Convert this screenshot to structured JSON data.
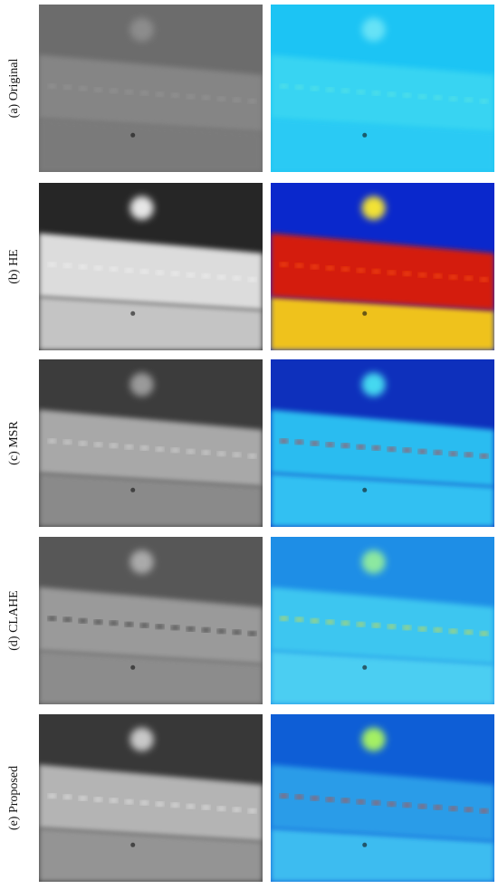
{
  "rows": [
    {
      "label": "(a) Original"
    },
    {
      "label": "(b) HE"
    },
    {
      "label": "(c) MSR"
    },
    {
      "label": "(d) CLAHE"
    },
    {
      "label": "(e) Proposed"
    }
  ]
}
